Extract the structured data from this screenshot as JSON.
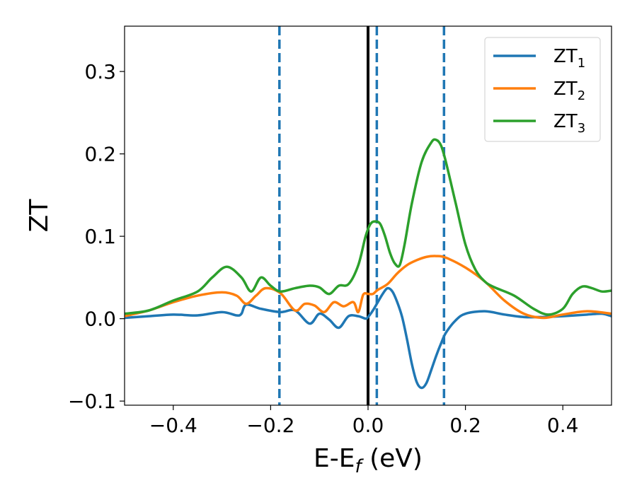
{
  "chart_data": {
    "type": "line",
    "xlabel": "E-E",
    "xlabel_sub": "f",
    "xlabel_unit": " (eV)",
    "ylabel": "ZT",
    "xlim": [
      -0.5,
      0.5
    ],
    "ylim": [
      -0.105,
      0.355
    ],
    "xticks": [
      -0.4,
      -0.2,
      0.0,
      0.2,
      0.4
    ],
    "xtick_labels": [
      "−0.4",
      "−0.2",
      "0.0",
      "0.2",
      "0.4"
    ],
    "yticks": [
      -0.1,
      0.0,
      0.1,
      0.2,
      0.3
    ],
    "ytick_labels": [
      "−0.1",
      "0.0",
      "0.1",
      "0.2",
      "0.3"
    ],
    "grid": false,
    "legend_position": "top-right",
    "vlines": [
      {
        "x": -0.182,
        "style": "dashed",
        "color": "#1f77b4"
      },
      {
        "x": 0.0,
        "style": "solid",
        "color": "#000000"
      },
      {
        "x": 0.018,
        "style": "dashed",
        "color": "#1f77b4"
      },
      {
        "x": 0.156,
        "style": "dashed",
        "color": "#1f77b4"
      }
    ],
    "series": [
      {
        "name": "ZT",
        "sub": "1",
        "color": "#1f77b4",
        "x": [
          -0.5,
          -0.45,
          -0.4,
          -0.35,
          -0.3,
          -0.27,
          -0.26,
          -0.25,
          -0.22,
          -0.18,
          -0.15,
          -0.12,
          -0.1,
          -0.08,
          -0.06,
          -0.04,
          -0.02,
          -0.005,
          0.0,
          0.01,
          0.02,
          0.03,
          0.04,
          0.05,
          0.06,
          0.07,
          0.08,
          0.09,
          0.1,
          0.11,
          0.12,
          0.13,
          0.14,
          0.15,
          0.16,
          0.18,
          0.2,
          0.24,
          0.28,
          0.32,
          0.36,
          0.4,
          0.45,
          0.48,
          0.5
        ],
        "y": [
          0.001,
          0.003,
          0.005,
          0.004,
          0.008,
          0.004,
          0.006,
          0.017,
          0.012,
          0.008,
          0.01,
          -0.006,
          0.006,
          -0.001,
          -0.011,
          0.003,
          0.003,
          0.0,
          0.002,
          0.01,
          0.02,
          0.03,
          0.037,
          0.033,
          0.02,
          0.002,
          -0.025,
          -0.055,
          -0.077,
          -0.084,
          -0.078,
          -0.062,
          -0.045,
          -0.03,
          -0.017,
          -0.002,
          0.006,
          0.009,
          0.005,
          0.002,
          0.002,
          0.003,
          0.005,
          0.006,
          0.003
        ]
      },
      {
        "name": "ZT",
        "sub": "2",
        "color": "#ff7f0e",
        "x": [
          -0.5,
          -0.45,
          -0.4,
          -0.35,
          -0.3,
          -0.27,
          -0.25,
          -0.23,
          -0.21,
          -0.18,
          -0.15,
          -0.13,
          -0.11,
          -0.09,
          -0.07,
          -0.05,
          -0.03,
          -0.02,
          -0.01,
          0.0,
          0.01,
          0.02,
          0.04,
          0.06,
          0.08,
          0.1,
          0.12,
          0.14,
          0.16,
          0.2,
          0.24,
          0.28,
          0.32,
          0.36,
          0.4,
          0.45,
          0.5
        ],
        "y": [
          0.003,
          0.01,
          0.02,
          0.028,
          0.032,
          0.028,
          0.018,
          0.028,
          0.037,
          0.031,
          0.01,
          0.018,
          0.016,
          0.008,
          0.02,
          0.015,
          0.02,
          0.008,
          0.029,
          0.03,
          0.03,
          0.035,
          0.042,
          0.055,
          0.065,
          0.071,
          0.075,
          0.076,
          0.074,
          0.062,
          0.045,
          0.022,
          0.006,
          0.001,
          0.005,
          0.009,
          0.006
        ]
      },
      {
        "name": "ZT",
        "sub": "3",
        "color": "#2ca02c",
        "x": [
          -0.5,
          -0.45,
          -0.4,
          -0.35,
          -0.32,
          -0.29,
          -0.26,
          -0.24,
          -0.22,
          -0.2,
          -0.18,
          -0.15,
          -0.12,
          -0.1,
          -0.08,
          -0.06,
          -0.04,
          -0.02,
          -0.005,
          0.005,
          0.015,
          0.025,
          0.035,
          0.045,
          0.055,
          0.065,
          0.075,
          0.09,
          0.11,
          0.13,
          0.14,
          0.15,
          0.16,
          0.18,
          0.2,
          0.22,
          0.24,
          0.26,
          0.3,
          0.34,
          0.37,
          0.4,
          0.42,
          0.44,
          0.46,
          0.48,
          0.5
        ],
        "y": [
          0.006,
          0.01,
          0.022,
          0.033,
          0.05,
          0.063,
          0.05,
          0.033,
          0.05,
          0.04,
          0.033,
          0.037,
          0.04,
          0.038,
          0.03,
          0.04,
          0.042,
          0.065,
          0.1,
          0.115,
          0.118,
          0.115,
          0.1,
          0.08,
          0.067,
          0.065,
          0.09,
          0.14,
          0.19,
          0.214,
          0.217,
          0.21,
          0.19,
          0.14,
          0.09,
          0.06,
          0.045,
          0.038,
          0.028,
          0.012,
          0.005,
          0.012,
          0.03,
          0.039,
          0.037,
          0.033,
          0.034
        ]
      }
    ]
  }
}
